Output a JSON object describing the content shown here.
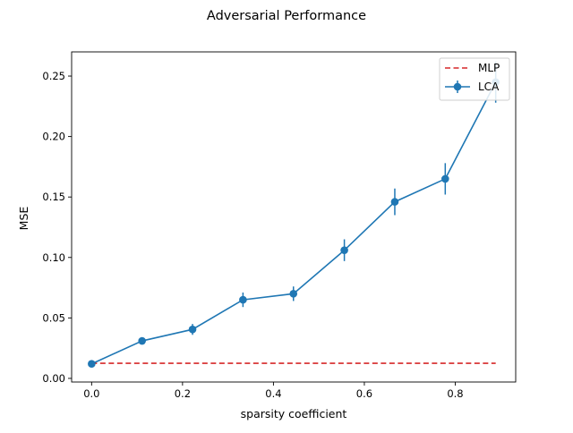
{
  "chart_data": {
    "type": "line",
    "title": "Adversarial Performance",
    "xlabel": "sparsity coefficient",
    "ylabel": "MSE",
    "xlim": [
      -0.044,
      0.933
    ],
    "ylim": [
      -0.003,
      0.27
    ],
    "x_ticks": [
      0.0,
      0.2,
      0.4,
      0.6,
      0.8
    ],
    "x_tick_labels": [
      "0.0",
      "0.2",
      "0.4",
      "0.6",
      "0.8"
    ],
    "y_ticks": [
      0.0,
      0.05,
      0.1,
      0.15,
      0.2,
      0.25
    ],
    "y_tick_labels": [
      "0.00",
      "0.05",
      "0.10",
      "0.15",
      "0.20",
      "0.25"
    ],
    "grid": false,
    "legend_position": "top-right",
    "series": [
      {
        "name": "LCA",
        "style": "solid line with circle markers and vertical error bars",
        "color": "#1f77b4",
        "x": [
          0.0,
          0.111,
          0.222,
          0.333,
          0.444,
          0.556,
          0.667,
          0.778,
          0.889
        ],
        "y": [
          0.012,
          0.031,
          0.0405,
          0.065,
          0.07,
          0.106,
          0.146,
          0.165,
          0.245
        ],
        "err": [
          0.001,
          0.003,
          0.0045,
          0.006,
          0.006,
          0.009,
          0.011,
          0.013,
          0.017
        ]
      },
      {
        "name": "MLP",
        "style": "dashed line",
        "color": "#d62728",
        "x": [
          0.0,
          0.889
        ],
        "y": [
          0.0125,
          0.0125
        ]
      }
    ]
  }
}
